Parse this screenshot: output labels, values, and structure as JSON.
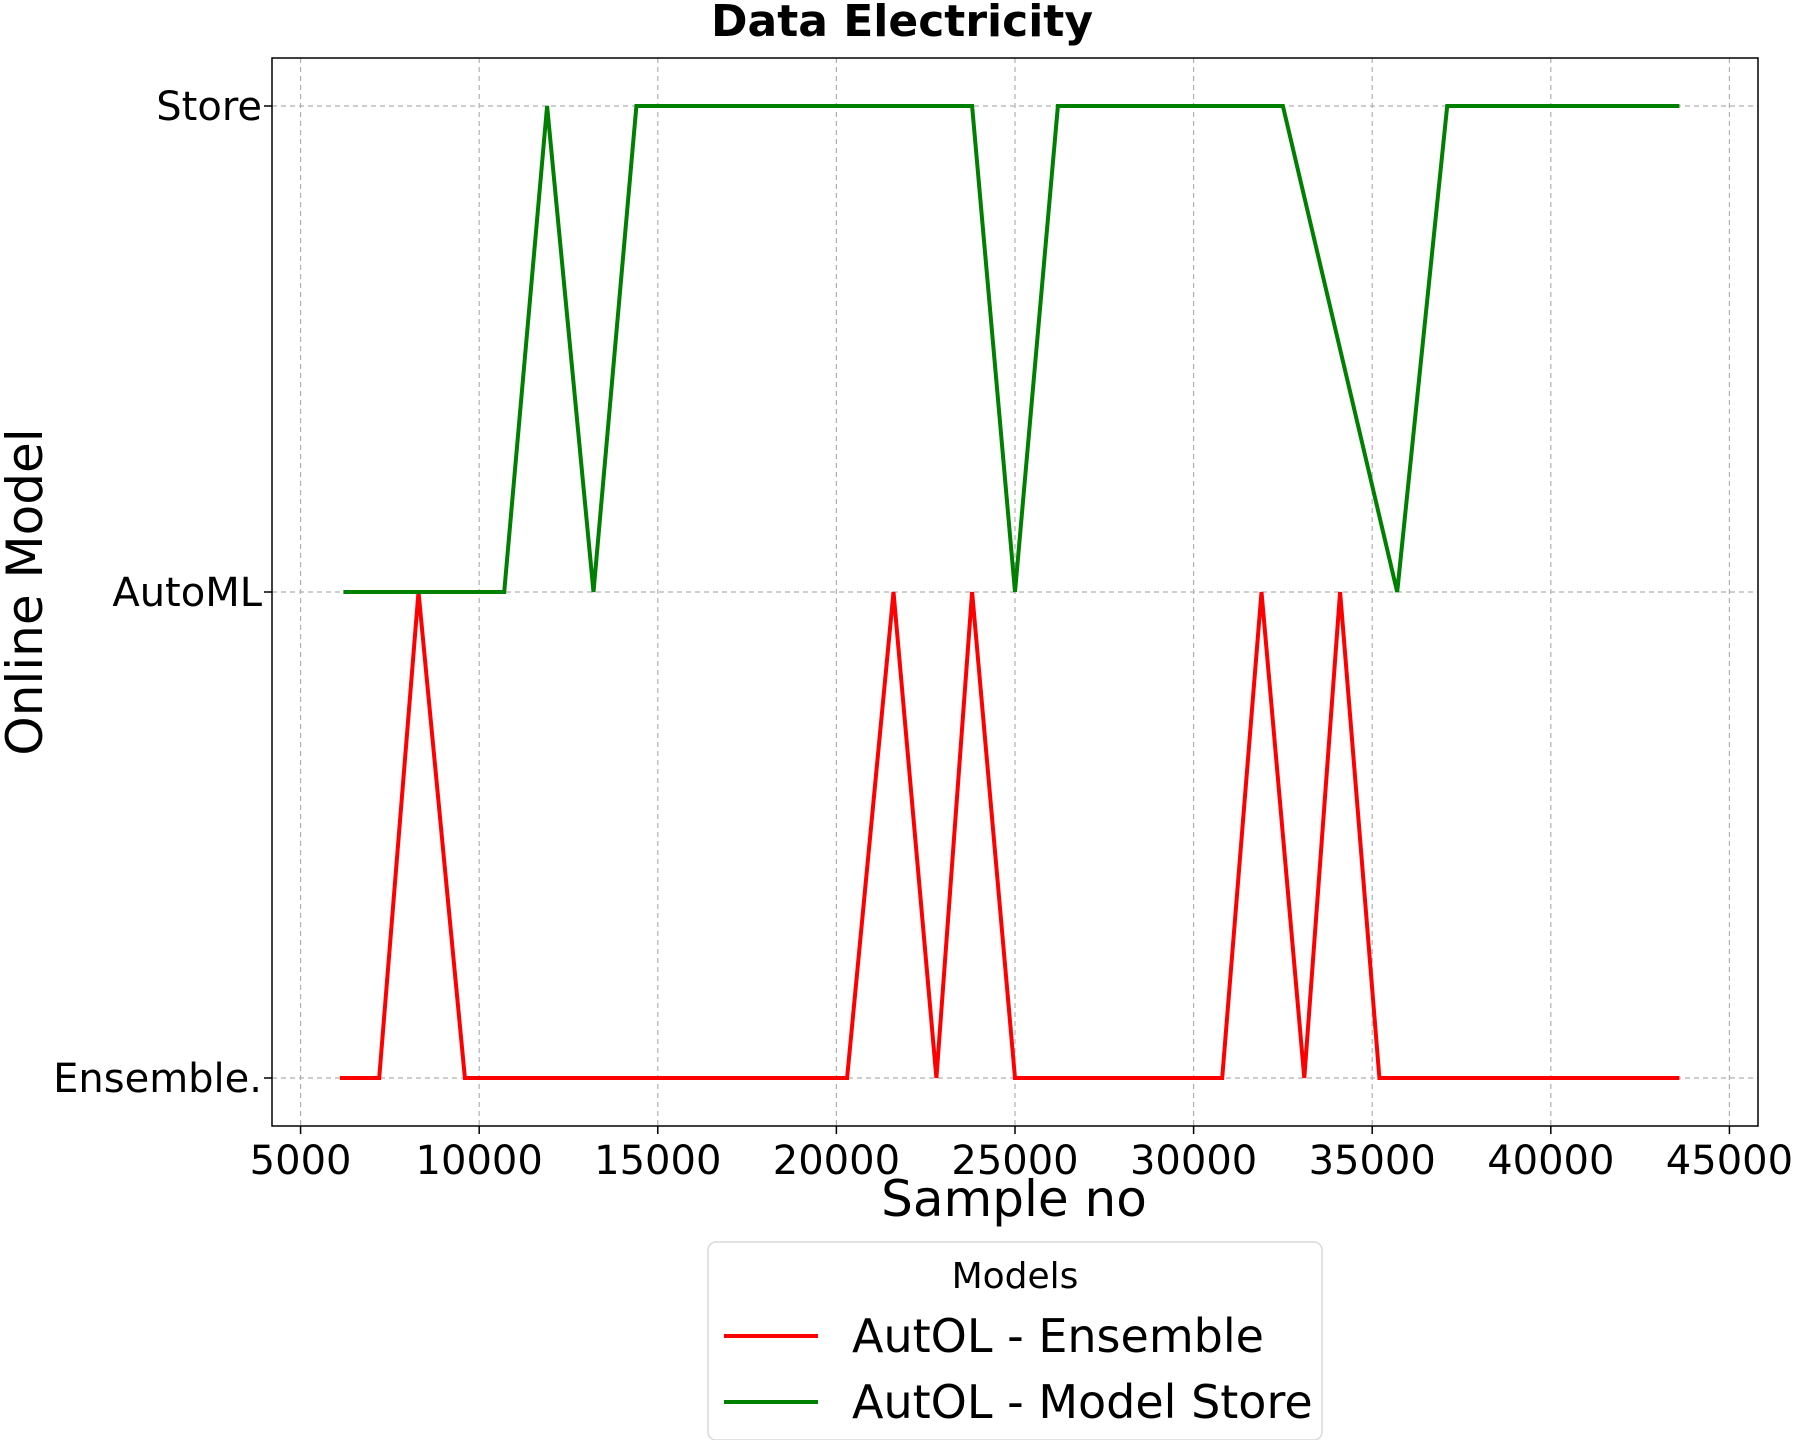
{
  "chart_data": {
    "type": "line",
    "title": "Data Electricity",
    "xlabel": "Sample no",
    "ylabel": "Online Model",
    "xlim": [
      4200,
      45800
    ],
    "x_ticks": [
      5000,
      10000,
      15000,
      20000,
      25000,
      30000,
      35000,
      40000,
      45000
    ],
    "y_categories": [
      "Ensemble.",
      "AutoML",
      "Store"
    ],
    "grid": true,
    "legend": {
      "title": "Models",
      "placement": "bottom-center, below axes"
    },
    "series": [
      {
        "name": "AutOL - Ensemble",
        "color": "#ff0000",
        "x": [
          6100,
          7200,
          8300,
          9600,
          20300,
          21600,
          22800,
          23800,
          25000,
          30800,
          31900,
          33100,
          34100,
          35200,
          43600
        ],
        "y": [
          "Ensemble.",
          "Ensemble.",
          "AutoML",
          "Ensemble.",
          "Ensemble.",
          "AutoML",
          "Ensemble.",
          "AutoML",
          "Ensemble.",
          "Ensemble.",
          "AutoML",
          "Ensemble.",
          "AutoML",
          "Ensemble.",
          "Ensemble."
        ]
      },
      {
        "name": "AutOL - Model Store",
        "color": "#008000",
        "x": [
          6200,
          10700,
          11900,
          13200,
          14400,
          23800,
          25000,
          26200,
          32500,
          35700,
          37100,
          43600
        ],
        "y": [
          "AutoML",
          "AutoML",
          "Store",
          "AutoML",
          "Store",
          "Store",
          "AutoML",
          "Store",
          "Store",
          "AutoML",
          "Store",
          "Store"
        ]
      }
    ]
  }
}
